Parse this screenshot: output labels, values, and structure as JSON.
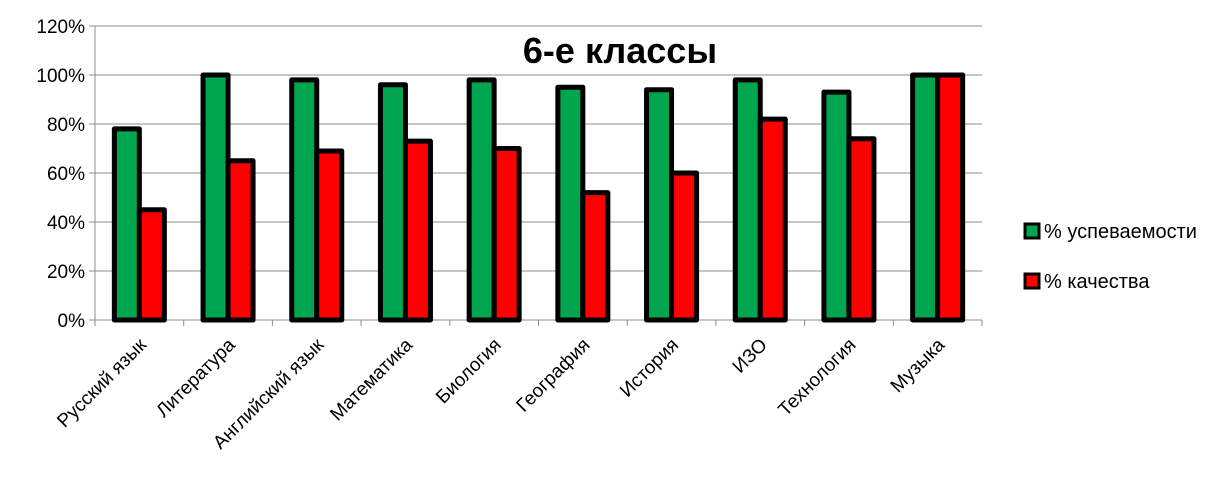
{
  "chart_data": {
    "type": "bar",
    "title": "6-е классы",
    "categories": [
      "Русский язык",
      "Литература",
      "Английский язык",
      "Математика",
      "Биология",
      "География",
      "История",
      "ИЗО",
      "Технология",
      "Музыка"
    ],
    "series": [
      {
        "name": "% успеваемости",
        "color": "#00a550",
        "values": [
          78,
          100,
          98,
          96,
          98,
          95,
          94,
          98,
          93,
          100
        ]
      },
      {
        "name": "% качества",
        "color": "#ff0000",
        "values": [
          45,
          65,
          69,
          73,
          70,
          52,
          60,
          82,
          74,
          100
        ]
      }
    ],
    "ylim": [
      0,
      120
    ],
    "yticks": [
      0,
      20,
      40,
      60,
      80,
      100,
      120
    ],
    "ytick_suffix": "%",
    "grid": true,
    "legend_position": "right",
    "bar_outline_color": "#000000"
  }
}
